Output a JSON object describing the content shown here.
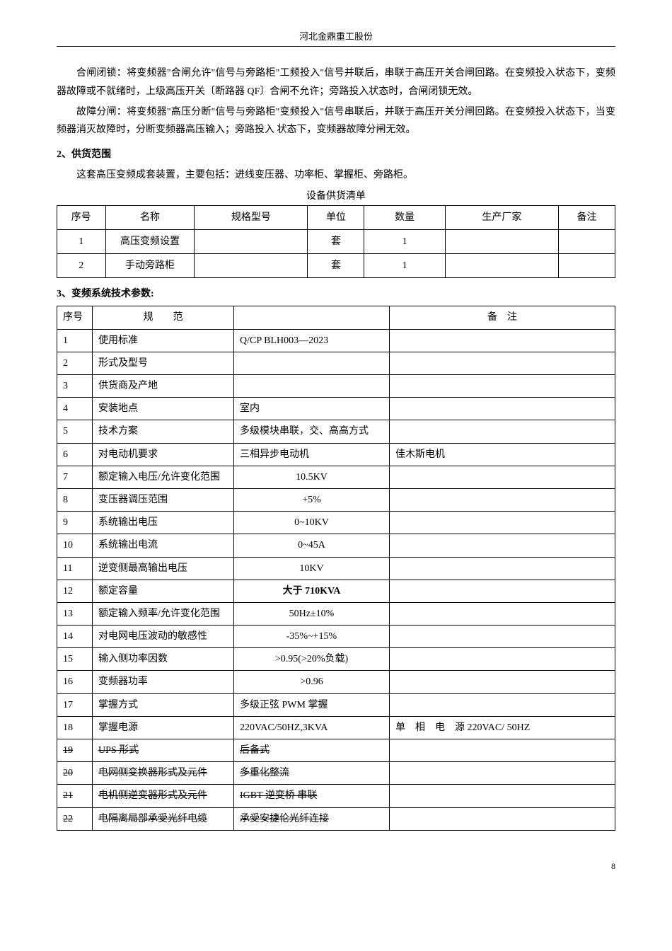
{
  "header": "河北金鼎重工股份",
  "para1": "合闸闭锁：将变频器\"合闸允许\"信号与旁路柜\"工频投入\"信号并联后，串联于高压开关合闸回路。在变频投入状态下，变频器故障或不就绪时，上级高压开关〔断路器 QF〕合闸不允许；旁路投入状态时，合闸闭锁无效。",
  "para2": "故障分闸：将变频器\"高压分断\"信号与旁路柜\"变频投入\"信号串联后，并联于高压开关分闸回路。在变频投入状态下，当变频器消灭故障时，分断变频器高压输入；旁路投入 状态下，变频器故障分闸无效。",
  "section2_title": "2、供货范围",
  "section2_sub": "这套高压变频成套装置，主要包括：进线变压器、功率柜、掌握柜、旁路柜。",
  "table1_caption": "设备供货清单",
  "table1": {
    "headers": [
      "序号",
      "名称",
      "规格型号",
      "单位",
      "数量",
      "生产厂家",
      "备注"
    ],
    "rows": [
      [
        "1",
        "高压变频设置",
        "",
        "套",
        "1",
        "",
        ""
      ],
      [
        "2",
        "手动旁路柜",
        "",
        "套",
        "1",
        "",
        ""
      ]
    ]
  },
  "section3_title": "3、变频系统技术参数:",
  "table2": {
    "headers": {
      "seq": "序号",
      "spec": "规　　范",
      "val": "",
      "note": "备　注"
    },
    "rows": [
      {
        "seq": "1",
        "spec": "使用标准",
        "val": "Q/CP BLH003—2023",
        "note": "",
        "strike": false
      },
      {
        "seq": "2",
        "spec": "形式及型号",
        "val": "",
        "note": "",
        "strike": false
      },
      {
        "seq": "3",
        "spec": "供货商及产地",
        "val": "",
        "note": "",
        "strike": false
      },
      {
        "seq": "4",
        "spec": "安装地点",
        "val": "室内",
        "note": "",
        "strike": false
      },
      {
        "seq": "5",
        "spec": "技术方案",
        "val": "多级模块串联，交、高高方式",
        "note": "",
        "strike": false
      },
      {
        "seq": "6",
        "spec": "对电动机要求",
        "val": "三相异步电动机",
        "note": "佳木斯电机",
        "strike": false
      },
      {
        "seq": "7",
        "spec": "额定输入电压/允许变化范围",
        "val": "10.5KV",
        "note": "",
        "center": true,
        "strike": false
      },
      {
        "seq": "8",
        "spec": "变压器调压范围",
        "val": "+5%",
        "note": "",
        "center": true,
        "strike": false
      },
      {
        "seq": "9",
        "spec": "系统输出电压",
        "val": "0~10KV",
        "note": "",
        "center": true,
        "strike": false
      },
      {
        "seq": "10",
        "spec": "系统输出电流",
        "val": "0~45A",
        "note": "",
        "center": true,
        "strike": false
      },
      {
        "seq": "11",
        "spec": "逆变侧最高输出电压",
        "val": "10KV",
        "note": "",
        "center": true,
        "strike": false
      },
      {
        "seq": "12",
        "spec": "额定容量",
        "val": "大于 710KVA",
        "note": "",
        "center": true,
        "bold": true,
        "strike": false
      },
      {
        "seq": "13",
        "spec": "额定输入频率/允许变化范围",
        "val": "50Hz±10%",
        "note": "",
        "center": true,
        "strike": false
      },
      {
        "seq": "14",
        "spec": "对电网电压波动的敏感性",
        "val": "-35%~+15%",
        "note": "",
        "center": true,
        "strike": false
      },
      {
        "seq": "15",
        "spec": "输入侧功率因数",
        "val": ">0.95(>20%负载)",
        "note": "",
        "center": true,
        "strike": false
      },
      {
        "seq": "16",
        "spec": "变频器功率",
        "val": ">0.96",
        "note": "",
        "center": true,
        "strike": false
      },
      {
        "seq": "17",
        "spec": "掌握方式",
        "val": "多级正弦 PWM 掌握",
        "note": "",
        "strike": false
      },
      {
        "seq": "18",
        "spec": "掌握电源",
        "val": "220VAC/50HZ,3KVA",
        "note": "单　相　电　源 220VAC/ 50HZ",
        "strike": false
      },
      {
        "seq": "19",
        "spec": "UPS 形式",
        "val": "后备式",
        "note": "",
        "strike": true
      },
      {
        "seq": "20",
        "spec": "电网侧变换器形式及元件",
        "val": "多重化整流",
        "note": "",
        "strike": true
      },
      {
        "seq": "21",
        "spec": "电机侧逆变器形式及元件",
        "val": "IGBT 逆变桥 串联",
        "note": "",
        "strike": true
      },
      {
        "seq": "22",
        "spec": "电隔离局部承受光纤电缆",
        "val": "承受安捷伦光纤连接",
        "note": "",
        "strike": true
      }
    ]
  },
  "page_number": "8"
}
